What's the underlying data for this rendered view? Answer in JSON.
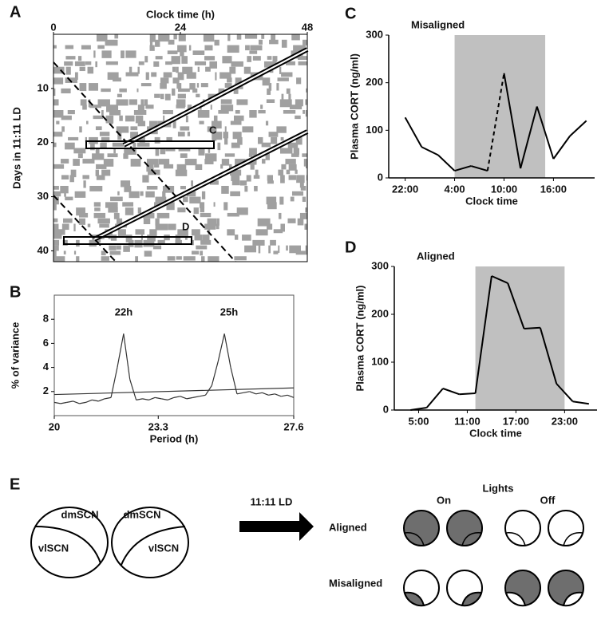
{
  "chart_data": [
    {
      "type": "actogram",
      "panel": "A",
      "title": "Clock time (h)",
      "ylabel": "Days in 11:11 LD",
      "xlim": [
        0,
        48
      ],
      "xticks": [
        0,
        24,
        48
      ],
      "ylim": [
        0,
        42
      ],
      "yticks": [
        10,
        20,
        30,
        40
      ],
      "annotations": [
        "C",
        "D"
      ],
      "color": "#a0a0a0"
    },
    {
      "type": "line",
      "panel": "B",
      "xlabel": "Period (h)",
      "ylabel": "% of variance",
      "xlim": [
        20,
        27.6
      ],
      "xticks": [
        20,
        23.3,
        27.6
      ],
      "ylim": [
        0,
        10
      ],
      "yticks": [
        2,
        4,
        6,
        8
      ],
      "annotations": [
        "22h",
        "25h"
      ],
      "frame": true,
      "series": [
        {
          "color": "#333333",
          "x": [
            20,
            20.2,
            20.4,
            20.6,
            20.8,
            21,
            21.2,
            21.4,
            21.6,
            21.8,
            22,
            22.2,
            22.4,
            22.6,
            22.8,
            23,
            23.2,
            23.4,
            23.6,
            23.8,
            24,
            24.2,
            24.4,
            24.6,
            24.8,
            25,
            25.2,
            25.4,
            25.6,
            25.8,
            26,
            26.2,
            26.4,
            26.6,
            26.8,
            27,
            27.2,
            27.4,
            27.6
          ],
          "values": [
            1.1,
            1.0,
            1.1,
            1.2,
            1.0,
            1.1,
            1.3,
            1.2,
            1.4,
            1.5,
            4.0,
            6.8,
            3.0,
            1.3,
            1.4,
            1.3,
            1.5,
            1.4,
            1.3,
            1.5,
            1.6,
            1.4,
            1.5,
            1.6,
            1.7,
            2.5,
            4.5,
            6.8,
            4.0,
            1.8,
            1.9,
            2.0,
            1.8,
            1.9,
            1.7,
            1.8,
            1.6,
            1.7,
            1.5
          ]
        },
        {
          "color": "#333333",
          "x": [
            20,
            27.6
          ],
          "values": [
            1.75,
            2.3
          ]
        }
      ]
    },
    {
      "type": "line",
      "panel": "C",
      "title": "Misaligned",
      "xlabel": "Clock time",
      "ylabel": "Plasma CORT (ng/ml)",
      "xlim": [
        20,
        45
      ],
      "xticks": [
        {
          "value": 22,
          "label": "22:00"
        },
        {
          "value": 28,
          "label": "4:00"
        },
        {
          "value": 34,
          "label": "10:00"
        },
        {
          "value": 40,
          "label": "16:00"
        }
      ],
      "ylim": [
        0,
        300
      ],
      "yticks": [
        0,
        100,
        200,
        300
      ],
      "shade": [
        28,
        39
      ],
      "shade_color": "#c0c0c0",
      "dashed_between": [
        32,
        34
      ],
      "x": [
        22,
        24,
        26,
        28,
        30,
        32,
        34,
        36,
        38,
        40,
        42,
        44
      ],
      "series": [
        {
          "color": "#000000",
          "values": [
            127,
            65,
            48,
            15,
            25,
            15,
            220,
            20,
            150,
            40,
            88,
            120
          ]
        }
      ]
    },
    {
      "type": "line",
      "panel": "D",
      "title": "Aligned",
      "xlabel": "Clock time",
      "ylabel": "Plasma CORT (ng/ml)",
      "xlim": [
        2,
        27
      ],
      "xticks": [
        {
          "value": 5,
          "label": "5:00"
        },
        {
          "value": 11,
          "label": "11:00"
        },
        {
          "value": 17,
          "label": "17:00"
        },
        {
          "value": 23,
          "label": "23:00"
        }
      ],
      "ylim": [
        0,
        300
      ],
      "yticks": [
        0,
        100,
        200,
        300
      ],
      "shade": [
        12,
        23
      ],
      "shade_color": "#c0c0c0",
      "x": [
        4,
        6,
        8,
        10,
        12,
        14,
        16,
        18,
        20,
        22,
        24,
        26
      ],
      "series": [
        {
          "color": "#000000",
          "values": [
            0,
            5,
            45,
            33,
            35,
            280,
            265,
            170,
            172,
            55,
            18,
            13
          ]
        }
      ]
    }
  ],
  "diagram": {
    "panel": "E",
    "circle_labels": [
      "dmSCN",
      "vlSCN",
      "dmSCN",
      "vlSCN"
    ],
    "arrow_label": "11:11 LD",
    "lights": "Lights",
    "on": "On",
    "off": "Off",
    "rows": [
      "Aligned",
      "Misaligned"
    ]
  }
}
